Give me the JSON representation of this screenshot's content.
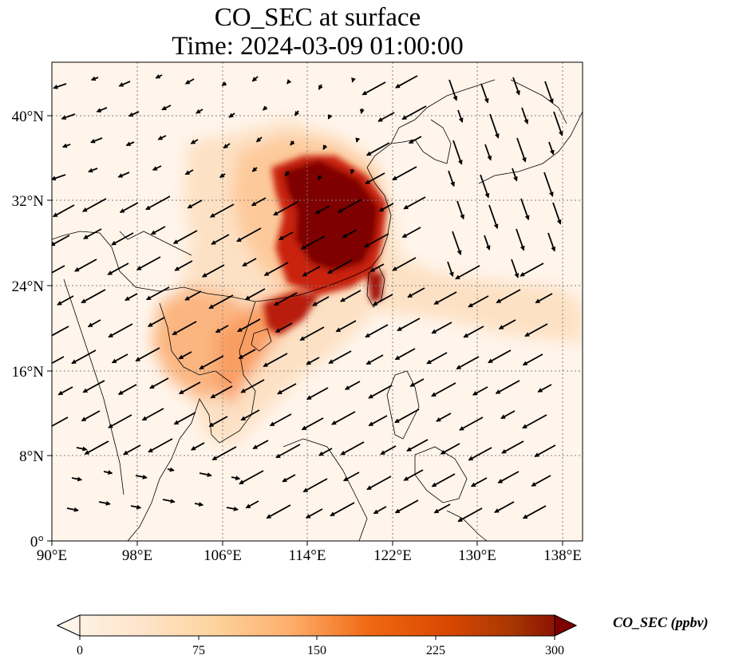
{
  "title": {
    "line1": "CO_SEC at surface",
    "line2": "Time: 2024-03-09 01:00:00"
  },
  "axes": {
    "lon_ticks": [
      "90°E",
      "98°E",
      "106°E",
      "114°E",
      "122°E",
      "130°E",
      "138°E"
    ],
    "lat_ticks": [
      "0°",
      "8°N",
      "16°N",
      "24°N",
      "32°N",
      "40°N"
    ],
    "lon_range": [
      90,
      140
    ],
    "lat_range": [
      0,
      45
    ],
    "gridlines": "dotted"
  },
  "colorbar": {
    "label": "CO_SEC (ppbv)",
    "ticks": [
      "0",
      "75",
      "150",
      "225",
      "300"
    ],
    "range": [
      0,
      300
    ],
    "colormap": [
      "#fff5eb",
      "#fdd49e",
      "#fdbb84",
      "#fc8d59",
      "#ef6548",
      "#d7301f",
      "#b30000",
      "#7f0000"
    ]
  },
  "colors": {
    "background": "#fff5eb",
    "coast": "#000000",
    "grid": "#808080"
  }
}
